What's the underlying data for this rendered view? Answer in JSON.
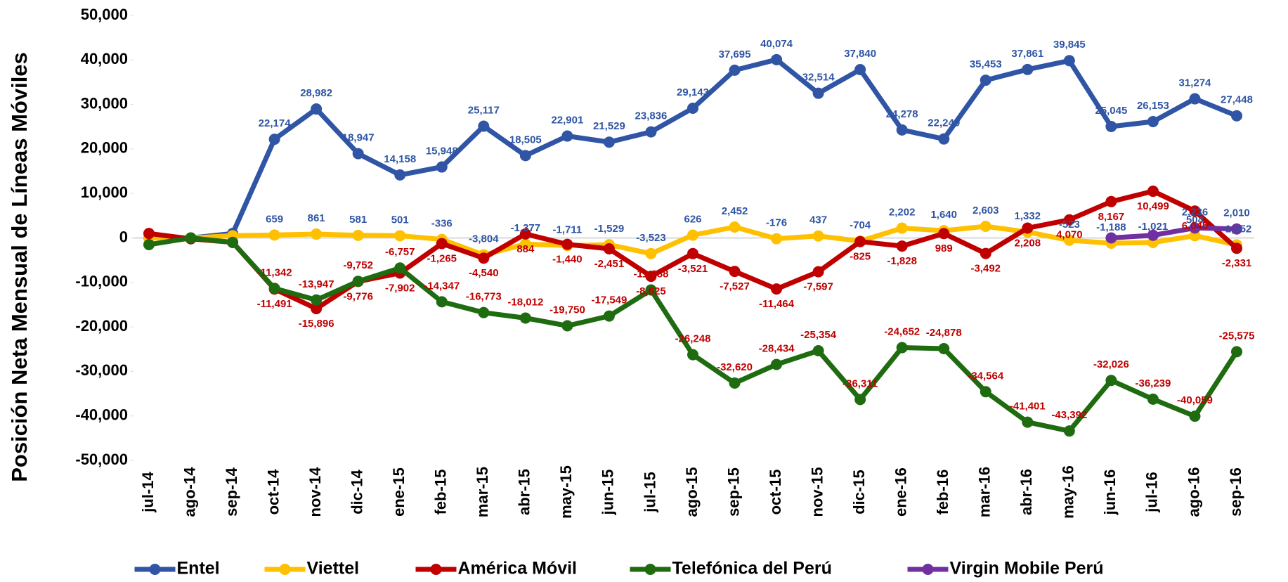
{
  "chart_data": {
    "type": "line",
    "y_label": "Posición Neta Mensual de Líneas Móviles",
    "categories": [
      "jul-14",
      "ago-14",
      "sep-14",
      "oct-14",
      "nov-14",
      "dic-14",
      "ene-15",
      "feb-15",
      "mar-15",
      "abr-15",
      "may-15",
      "jun-15",
      "jul-15",
      "ago-15",
      "sep-15",
      "oct-15",
      "nov-15",
      "dic-15",
      "ene-16",
      "feb-16",
      "mar-16",
      "abr-16",
      "may-16",
      "jun-16",
      "jul-16",
      "ago-16",
      "sep-16"
    ],
    "ylim": [
      -50000,
      50000
    ],
    "yticks": [
      {
        "value": -50000,
        "label": "-50,000"
      },
      {
        "value": -40000,
        "label": "-40,000"
      },
      {
        "value": -30000,
        "label": "-30,000"
      },
      {
        "value": -20000,
        "label": "-20,000"
      },
      {
        "value": -10000,
        "label": "-10,000"
      },
      0,
      {
        "value": 10000,
        "label": "10,000"
      },
      {
        "value": 20000,
        "label": "20,000"
      },
      {
        "value": 30000,
        "label": "30,000"
      },
      {
        "value": 40000,
        "label": "40,000"
      },
      {
        "value": 50000,
        "label": "50,000"
      }
    ],
    "grid": false,
    "legend": "bottom",
    "series": [
      {
        "name": "Entel",
        "color": "#2f55a4",
        "label_color": "#2f55a4",
        "label_side": "above",
        "values": [
          0,
          0,
          1000,
          22174,
          28982,
          18947,
          14158,
          15948,
          25117,
          18505,
          22901,
          21529,
          23836,
          29143,
          37695,
          40074,
          32514,
          37840,
          24278,
          22249,
          35453,
          37861,
          39845,
          25045,
          26153,
          31274,
          27448
        ],
        "value_labels": [
          null,
          null,
          null,
          "22,174",
          "28,982",
          "18,947",
          "14,158",
          "15,948",
          "25,117",
          "18,505",
          "22,901",
          "21,529",
          "23,836",
          "29,143",
          "37,695",
          "40,074",
          "32,514",
          "37,840",
          "24,278",
          "22,249",
          "35,453",
          "37,861",
          "39,845",
          "25,045",
          "26,153",
          "31,274",
          "27,448"
        ]
      },
      {
        "name": "Viettel",
        "color": "#ffc000",
        "label_color": "#2f55a4",
        "label_side": "above",
        "values": [
          0,
          0,
          500,
          659,
          861,
          581,
          501,
          -336,
          -3804,
          -1377,
          -1711,
          -1529,
          -3523,
          626,
          2452,
          -176,
          437,
          -704,
          2202,
          1640,
          2603,
          1332,
          -523,
          -1188,
          -1021,
          504,
          -1552
        ],
        "value_labels": [
          null,
          null,
          null,
          "659",
          "861",
          "581",
          "501",
          "-336",
          "-3,804",
          "-1,377",
          "-1,711",
          "-1,529",
          "-3,523",
          "626",
          "2,452",
          "-176",
          "437",
          "-704",
          "2,202",
          "1,640",
          "2,603",
          "1,332",
          "-523",
          "-1,188",
          "-1,021",
          "504",
          "-1,552"
        ]
      },
      {
        "name": "América Móvil",
        "color": "#c00000",
        "label_color": "#c00000",
        "label_side": "below",
        "values": [
          1000,
          -200,
          -1000,
          -11491,
          -15896,
          -9776,
          -7902,
          -1265,
          -4540,
          884,
          -1440,
          -2451,
          -8625,
          -3521,
          -7527,
          -11464,
          -7597,
          -825,
          -1828,
          989,
          -3492,
          2208,
          4070,
          8167,
          10499,
          6045,
          -2331
        ],
        "value_labels": [
          null,
          null,
          null,
          "-11,491",
          "-15,896",
          "-9,776",
          "-7,902",
          "-1,265",
          "-4,540",
          "884",
          "-1,440",
          "-2,451",
          "-8,625",
          "-3,521",
          "-7,527",
          "-11,464",
          "-7,597",
          "-825",
          "-1,828",
          "989",
          "-3,492",
          "2,208",
          "4,070",
          "8,167",
          "10,499",
          "6,045",
          "-2,331"
        ]
      },
      {
        "name": "Telefónica del Perú",
        "color": "#1e6b10",
        "label_color": "#c00000",
        "label_side": "above",
        "values": [
          -1500,
          0,
          -1000,
          -11342,
          -13947,
          -9752,
          -6757,
          -14347,
          -16773,
          -18012,
          -19750,
          -17549,
          -11688,
          -26248,
          -32620,
          -28434,
          -25354,
          -36311,
          -24652,
          -24878,
          -34564,
          -41401,
          -43392,
          -32026,
          -36239,
          -40059,
          -25575
        ],
        "value_labels": [
          null,
          null,
          null,
          "-11,342",
          "-13,947",
          "-9,752",
          "-6,757",
          "-14,347",
          "-16,773",
          "-18,012",
          "-19,750",
          "-17,549",
          "-11,688",
          "-26,248",
          "-32,620",
          "-28,434",
          "-25,354",
          "-36,311",
          "-24,652",
          "-24,878",
          "-34,564",
          "-41,401",
          "-43,392",
          "-32,026",
          "-36,239",
          "-40,059",
          "-25,575"
        ]
      },
      {
        "name": "Virgin Mobile Perú",
        "color": "#7030a0",
        "label_color": "#2f55a4",
        "label_side": "above",
        "values": [
          null,
          null,
          null,
          null,
          null,
          null,
          null,
          null,
          null,
          null,
          null,
          null,
          null,
          null,
          null,
          null,
          null,
          null,
          null,
          null,
          null,
          null,
          null,
          0,
          600,
          2236,
          2010
        ],
        "value_labels": [
          null,
          null,
          null,
          null,
          null,
          null,
          null,
          null,
          null,
          null,
          null,
          null,
          null,
          null,
          null,
          null,
          null,
          null,
          null,
          null,
          null,
          null,
          null,
          null,
          null,
          "2,236",
          "2,010"
        ]
      }
    ]
  }
}
